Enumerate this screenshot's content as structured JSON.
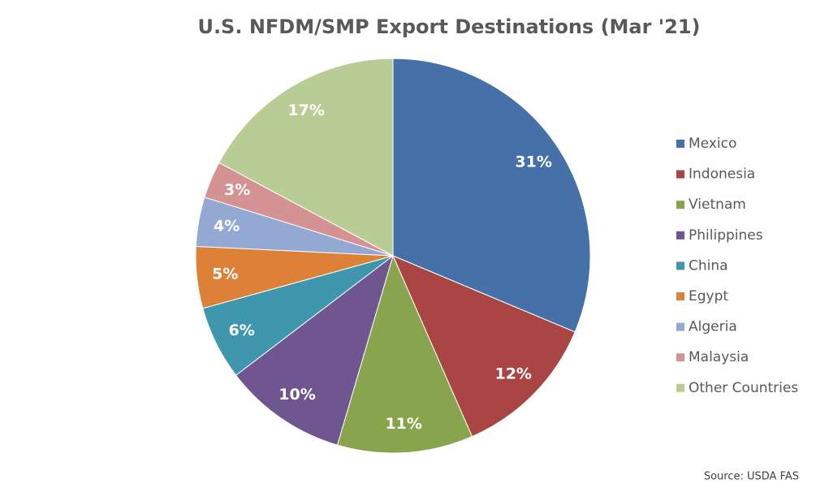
{
  "chart_data": {
    "type": "pie",
    "title": "U.S. NFDM/SMP Export Destinations (Mar '21)",
    "source": "Source: USDA FAS",
    "categories": [
      "Mexico",
      "Indonesia",
      "Vietnam",
      "Philippines",
      "China",
      "Egypt",
      "Algeria",
      "Malaysia",
      "Other Countries"
    ],
    "values": [
      31,
      12,
      11,
      10,
      6,
      5,
      4,
      3,
      17
    ],
    "value_labels": [
      "31%",
      "12%",
      "11%",
      "10%",
      "6%",
      "5%",
      "4%",
      "3%",
      "17%"
    ],
    "colors": [
      "#4570a8",
      "#a94543",
      "#88a44c",
      "#6f5690",
      "#3f97ae",
      "#dd8038",
      "#94a9d1",
      "#d49392",
      "#b8cd96"
    ],
    "legend": "right"
  }
}
